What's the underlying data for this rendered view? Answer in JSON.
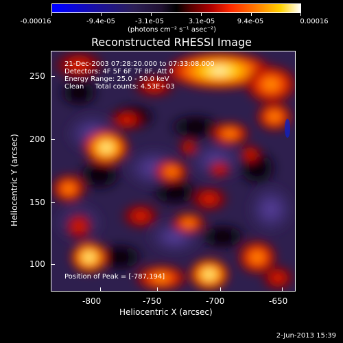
{
  "colorbar": {
    "labels": [
      "-0.00016",
      "-9.4e-05",
      "-3.1e-05",
      "3.1e-05",
      "9.4e-05",
      "0.00016"
    ],
    "unit": "(photons cm⁻² s⁻¹ asec⁻²)"
  },
  "title": "Reconstructed RHESSI Image",
  "overlay": {
    "line1": "21-Dec-2003 07:28:20.000 to 07:33:08.000",
    "line2": "Detectors: 4F 5F 6F 7F 8F, Att 0",
    "line3": "Energy Range: 25.0 - 50.0 keV",
    "line4": "Clean     Total counts: 4.53E+03",
    "peak": "Position of Peak = [-787,194]"
  },
  "axes": {
    "xlabel": "Heliocentric X (arcsec)",
    "ylabel": "Heliocentric Y (arcsec)",
    "xticks": [
      "-800",
      "-750",
      "-700",
      "-650"
    ],
    "yticks": [
      "250",
      "200",
      "150",
      "100"
    ]
  },
  "datestamp": "2-Jun-2013 15:39"
}
